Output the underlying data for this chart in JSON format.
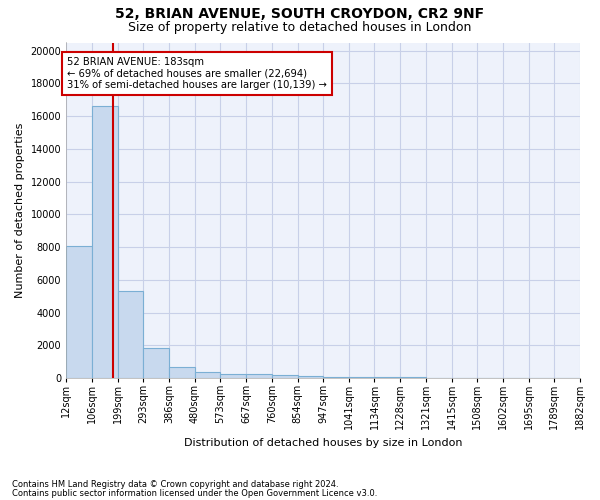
{
  "title_line1": "52, BRIAN AVENUE, SOUTH CROYDON, CR2 9NF",
  "title_line2": "Size of property relative to detached houses in London",
  "xlabel": "Distribution of detached houses by size in London",
  "ylabel": "Number of detached properties",
  "footnote1": "Contains HM Land Registry data © Crown copyright and database right 2024.",
  "footnote2": "Contains public sector information licensed under the Open Government Licence v3.0.",
  "bin_edges": [
    12,
    106,
    199,
    293,
    386,
    480,
    573,
    667,
    760,
    854,
    947,
    1041,
    1134,
    1228,
    1321,
    1415,
    1508,
    1602,
    1695,
    1789,
    1882
  ],
  "bar_heights": [
    8100,
    16600,
    5300,
    1850,
    650,
    350,
    275,
    225,
    175,
    125,
    90,
    70,
    55,
    40,
    30,
    20,
    15,
    10,
    8,
    5
  ],
  "bar_color": "#c8d9ee",
  "bar_edgecolor": "#7bafd4",
  "property_size": 183,
  "red_line_color": "#cc0000",
  "annotation_text": "52 BRIAN AVENUE: 183sqm\n← 69% of detached houses are smaller (22,694)\n31% of semi-detached houses are larger (10,139) →",
  "annotation_box_color": "white",
  "annotation_border_color": "#cc0000",
  "ylim": [
    0,
    20500
  ],
  "yticks": [
    0,
    2000,
    4000,
    6000,
    8000,
    10000,
    12000,
    14000,
    16000,
    18000,
    20000
  ],
  "background_color": "#eef2fb",
  "grid_color": "#c8d0e8",
  "title_fontsize": 10,
  "subtitle_fontsize": 9,
  "axis_label_fontsize": 8,
  "tick_fontsize": 7,
  "ylabel_fontsize": 8
}
